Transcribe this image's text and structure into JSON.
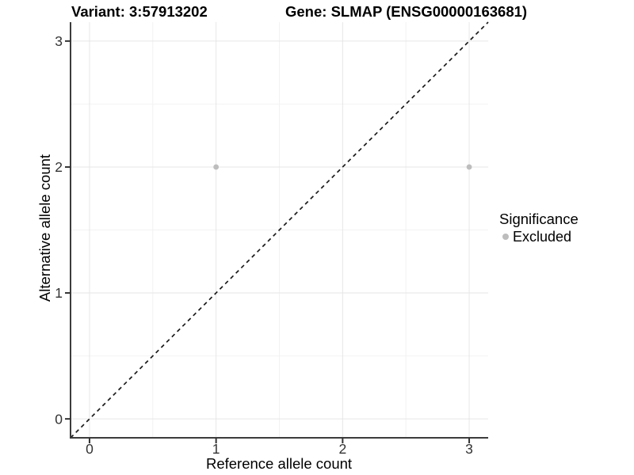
{
  "page": {
    "background": "#ffffff"
  },
  "chart_data": {
    "type": "scatter",
    "title_left": "Variant: 3:57913202",
    "title_right": "Gene: SLMAP (ENSG00000163681)",
    "xlabel": "Reference allele count",
    "ylabel": "Alternative allele count",
    "xlim": [
      -0.15,
      3.15
    ],
    "ylim": [
      -0.15,
      3.15
    ],
    "xticks": [
      0,
      1,
      2,
      3
    ],
    "yticks": [
      0,
      1,
      2,
      3
    ],
    "xtick_labels": [
      "0",
      "1",
      "2",
      "3"
    ],
    "ytick_labels": [
      "0",
      "1",
      "2",
      "3"
    ],
    "minor_gridlines": [
      0.5,
      1.5,
      2.5
    ],
    "grid": true,
    "points": [
      {
        "x": 1,
        "y": 2,
        "significance": "Excluded"
      },
      {
        "x": 3,
        "y": 2,
        "significance": "Excluded"
      }
    ],
    "identity_line": {
      "slope": 1,
      "intercept": 0,
      "style": "dashed"
    },
    "legend": {
      "title": "Significance",
      "position": "right",
      "entries": [
        {
          "label": "Excluded",
          "color": "#BDBDBD"
        }
      ]
    },
    "colors": {
      "point": "#BDBDBD",
      "grid_major": "#E6E6E6",
      "grid_minor": "#F2F2F2",
      "axis_line": "#3C3C3C",
      "tick_mark": "#333333",
      "tick_text": "#333333",
      "identity_line": "#1A1A1A",
      "text": "#000000"
    }
  }
}
